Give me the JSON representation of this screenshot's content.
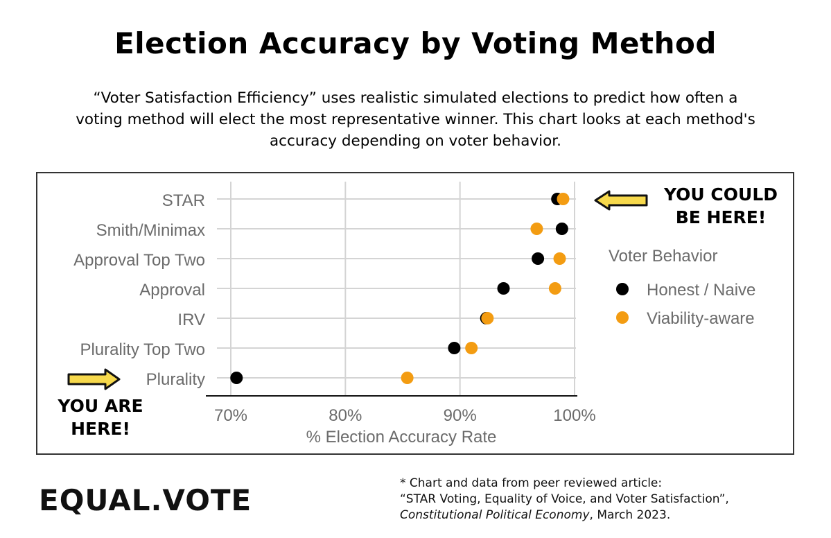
{
  "header": {
    "title": "Election Accuracy by Voting Method",
    "subtitle": "“Voter Satisfaction Efficiency” uses realistic simulated elections to predict how often a voting method will elect the most representative winner. This chart looks at each method's accuracy depending on voter behavior."
  },
  "callouts": {
    "top_line1": "YOU COULD",
    "top_line2": "BE HERE!",
    "bottom_line1": "YOU ARE",
    "bottom_line2": "HERE!",
    "arrow_color": "#F7D94C"
  },
  "footer": {
    "brand": "EQUAL.VOTE",
    "source_line1": "* Chart and data from peer reviewed article:",
    "source_line2": "“STAR Voting, Equality of Voice, and Voter Satisfaction”,",
    "source_journal": "Constitutional Political Economy",
    "source_date": ", March 2023."
  },
  "chart_data": {
    "type": "scatter",
    "categories": [
      "STAR",
      "Smith/Minimax",
      "Approval Top Two",
      "Approval",
      "IRV",
      "Plurality Top Two",
      "Plurality"
    ],
    "xlabel": "% Election Accuracy Rate",
    "xlim": [
      70,
      100
    ],
    "xticks": [
      "70%",
      "80%",
      "90%",
      "100%"
    ],
    "xtick_values": [
      70,
      80,
      90,
      100
    ],
    "grid": true,
    "legend": {
      "title": "Voter Behavior",
      "placement": "right"
    },
    "series": [
      {
        "name": "Honest / Naive",
        "color": "#000000",
        "values": [
          98.5,
          98.9,
          96.8,
          93.8,
          92.3,
          89.5,
          70.5
        ]
      },
      {
        "name": "Viability-aware",
        "color": "#F39C12",
        "values": [
          99.0,
          96.7,
          98.7,
          98.3,
          92.4,
          91.0,
          85.4
        ]
      }
    ]
  }
}
